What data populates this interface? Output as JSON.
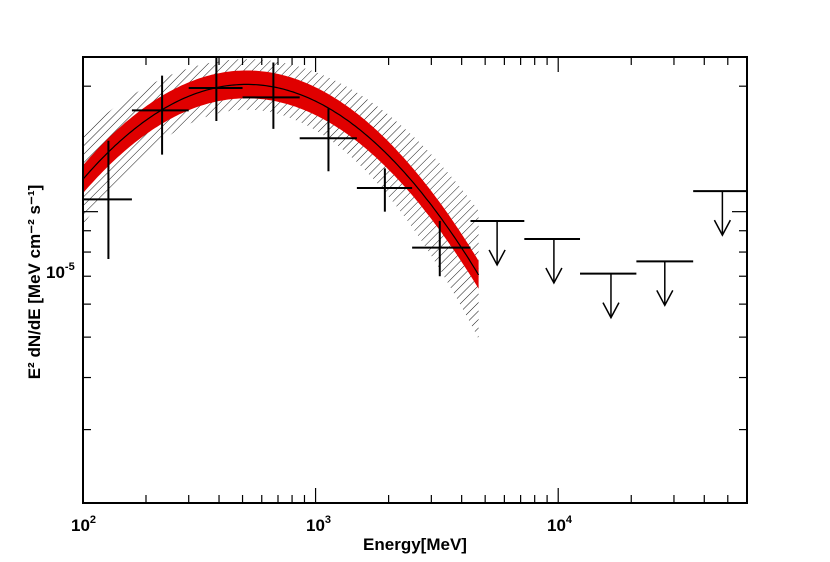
{
  "chart_data": {
    "type": "scatter",
    "title": "",
    "xlabel": "Energy[MeV]",
    "ylabel": "E² dN/dE [MeV cm⁻² s⁻¹]",
    "xscale": "log",
    "yscale": "log",
    "xlim": [
      110,
      60000
    ],
    "ylim": [
      2e-06,
      2.35e-05
    ],
    "x_tick_labels": [
      {
        "base": "10",
        "exp": "2",
        "value": 100
      },
      {
        "base": "10",
        "exp": "3",
        "value": 1000
      },
      {
        "base": "10",
        "exp": "4",
        "value": 10000
      }
    ],
    "y_tick_labels": [
      {
        "base": "10",
        "exp": "-5",
        "value": 1e-05
      }
    ],
    "model": {
      "name": "log-parabola fit",
      "color": "#e00000",
      "peak_energy": 520,
      "peak_value": 2.02e-05,
      "beta": 0.5,
      "band_factor": 1.08,
      "uncertainty_factor_min": 1.15,
      "uncertainty_factor_log_coeff": 0.3,
      "emin": 110,
      "emax": 4700
    },
    "points": [
      {
        "x": 140,
        "y": 1.07e-05,
        "xlo": 110,
        "xhi": 175,
        "ylo": 7.7e-06,
        "yhi": 1.48e-05
      },
      {
        "x": 233,
        "y": 1.75e-05,
        "xlo": 175,
        "xhi": 300,
        "ylo": 1.37e-05,
        "yhi": 2.12e-05
      },
      {
        "x": 390,
        "y": 1.98e-05,
        "xlo": 300,
        "xhi": 500,
        "ylo": 1.65e-05,
        "yhi": 2.35e-05
      },
      {
        "x": 670,
        "y": 1.88e-05,
        "xlo": 500,
        "xhi": 860,
        "ylo": 1.58e-05,
        "yhi": 2.28e-05
      },
      {
        "x": 1130,
        "y": 1.5e-05,
        "xlo": 860,
        "xhi": 1480,
        "ylo": 1.25e-05,
        "yhi": 1.77e-05
      },
      {
        "x": 1930,
        "y": 1.14e-05,
        "xlo": 1480,
        "xhi": 2500,
        "ylo": 1e-05,
        "yhi": 1.27e-05
      },
      {
        "x": 3250,
        "y": 8.2e-06,
        "xlo": 2500,
        "xhi": 4350,
        "ylo": 7e-06,
        "yhi": 9.5e-06
      }
    ],
    "upper_limits": [
      {
        "x": 5600,
        "y": 9.5e-06,
        "xlo": 4350,
        "xhi": 7250
      },
      {
        "x": 9600,
        "y": 8.6e-06,
        "xlo": 7250,
        "xhi": 12300
      },
      {
        "x": 16500,
        "y": 7.1e-06,
        "xlo": 12300,
        "xhi": 21000
      },
      {
        "x": 27500,
        "y": 7.6e-06,
        "xlo": 21000,
        "xhi": 36000
      },
      {
        "x": 47500,
        "y": 1.12e-05,
        "xlo": 36000,
        "xhi": 60000
      }
    ]
  }
}
